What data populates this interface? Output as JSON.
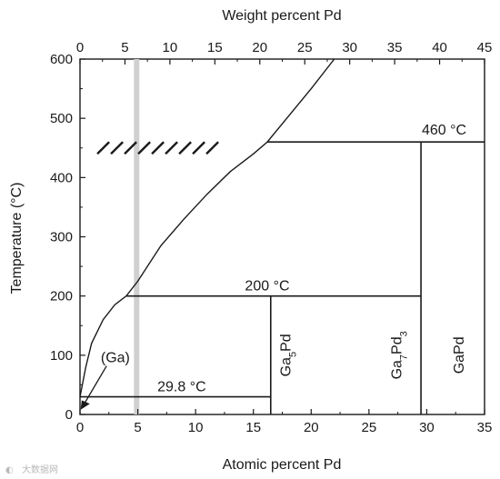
{
  "chart_data": {
    "type": "line",
    "xlabel_top": "Weight percent Pd",
    "xlabel": "Atomic percent Pd",
    "ylabel": "Temperature (°C)",
    "xlim": [
      0,
      35
    ],
    "ylim": [
      0,
      600
    ],
    "x_top_lim": [
      0,
      45
    ],
    "x_ticks": [
      "0",
      "5",
      "10",
      "15",
      "20",
      "25",
      "30",
      "35"
    ],
    "x_top_ticks": [
      "0",
      "5",
      "10",
      "15",
      "20",
      "25",
      "30",
      "35",
      "40",
      "45"
    ],
    "y_ticks": [
      "0",
      "100",
      "200",
      "300",
      "400",
      "500",
      "600"
    ],
    "liquidus": {
      "x": [
        0,
        0.5,
        1.0,
        2.0,
        3.0,
        4.0,
        5.0,
        7.0,
        9.0,
        11.0,
        13.0,
        15.0,
        16.2,
        20.0,
        22.0
      ],
      "y": [
        29.8,
        80,
        120,
        160,
        185,
        200,
        225,
        285,
        330,
        372,
        410,
        440,
        460,
        550,
        600
      ]
    },
    "isotherms": [
      {
        "label": "29.8 °C",
        "x": [
          0,
          16.5
        ],
        "y": 29.8
      },
      {
        "label": "200 °C",
        "x": [
          4.0,
          29.5
        ],
        "y": 200
      },
      {
        "label": "460 °C",
        "x": [
          16.2,
          35
        ],
        "y": 460
      }
    ],
    "compounds": [
      {
        "x": 16.5,
        "y": [
          0,
          200
        ]
      },
      {
        "x": 29.5,
        "y": [
          0,
          460
        ]
      }
    ],
    "phase_labels": {
      "ga": "(Ga)",
      "ga5pd": {
        "a": "Ga",
        "a_sub": "5",
        "b": "Pd"
      },
      "ga7pd3": {
        "a": "Ga",
        "a_sub": "7",
        "b": "Pd",
        "b_sub": "3"
      },
      "gapd": "GaPd"
    },
    "gray_band_x": 4.9,
    "hatch": {
      "x": [
        1.5,
        12.5
      ],
      "y": [
        440,
        460
      ]
    },
    "grid": false,
    "watermark": "大数据网"
  }
}
